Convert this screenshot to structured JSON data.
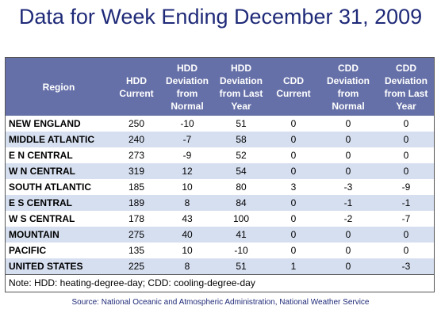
{
  "title": "Data for Week Ending December 31, 2009",
  "table": {
    "headers": [
      "Region",
      "HDD\nCurrent",
      "HDD\nDeviation\nfrom\nNormal",
      "HDD\nDeviation\nfrom Last\nYear",
      "CDD\nCurrent",
      "CDD\nDeviation\nfrom\nNormal",
      "CDD\nDeviation\nfrom Last\nYear"
    ],
    "rows": [
      [
        "NEW ENGLAND",
        "250",
        "-10",
        "51",
        "0",
        "0",
        "0"
      ],
      [
        "MIDDLE ATLANTIC",
        "240",
        "-7",
        "58",
        "0",
        "0",
        "0"
      ],
      [
        "E N CENTRAL",
        "273",
        "-9",
        "52",
        "0",
        "0",
        "0"
      ],
      [
        "W N CENTRAL",
        "319",
        "12",
        "54",
        "0",
        "0",
        "0"
      ],
      [
        "SOUTH ATLANTIC",
        "185",
        "10",
        "80",
        "3",
        "-3",
        "-9"
      ],
      [
        "E S CENTRAL",
        "189",
        "8",
        "84",
        "0",
        "-1",
        "-1"
      ],
      [
        "W S CENTRAL",
        "178",
        "43",
        "100",
        "0",
        "-2",
        "-7"
      ],
      [
        "MOUNTAIN",
        "275",
        "40",
        "41",
        "0",
        "0",
        "0"
      ],
      [
        "PACIFIC",
        "135",
        "10",
        "-10",
        "0",
        "0",
        "0"
      ],
      [
        "UNITED STATES",
        "225",
        "8",
        "51",
        "1",
        "0",
        "-3"
      ]
    ]
  },
  "note": "Note: HDD: heating-degree-day; CDD: cooling-degree-day",
  "source": "Source:  National Oceanic and Atmospheric Administration, National Weather Service",
  "colors": {
    "header_bg": "#6670a8",
    "stripe": "#d6dff0",
    "title": "#1f2a78"
  }
}
